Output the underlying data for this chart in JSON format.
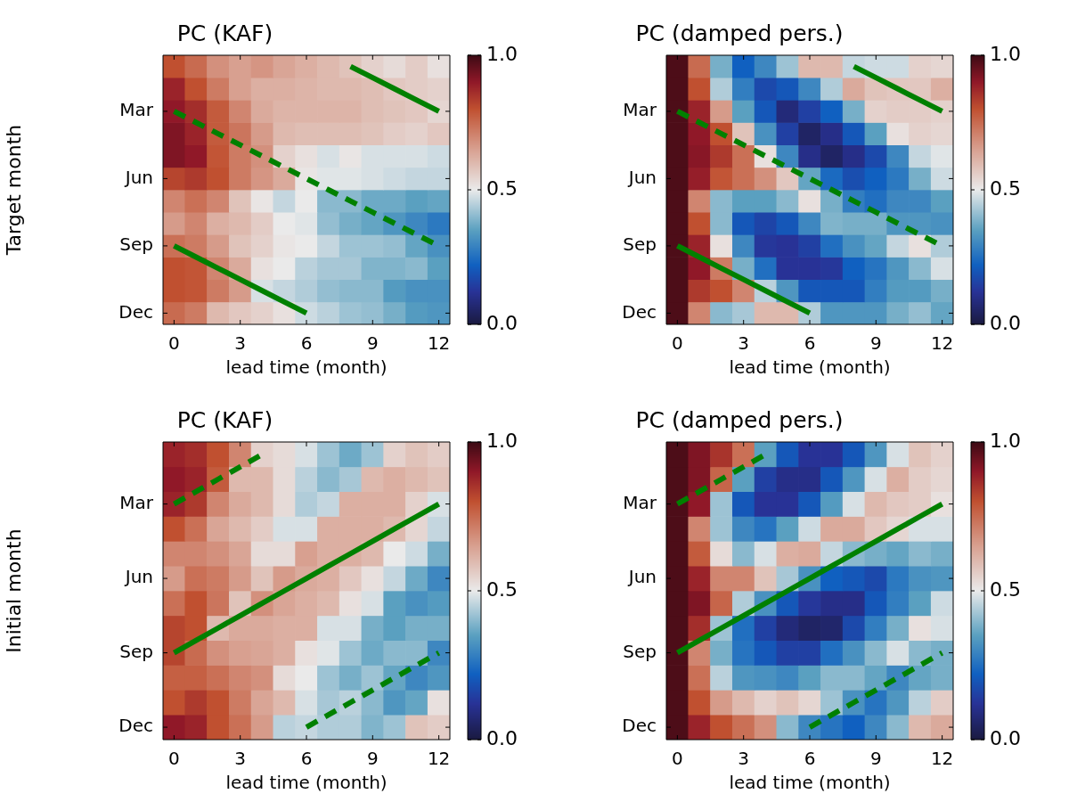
{
  "chart_data": [
    {
      "type": "heatmap",
      "title": "PC (KAF)",
      "xlabel": "lead time (month)",
      "ylabel": "Target month",
      "categories": [
        "0",
        null,
        null,
        "3",
        null,
        null,
        "6",
        null,
        null,
        "9",
        null,
        null,
        "12"
      ],
      "y_categories": [
        null,
        null,
        "Mar",
        null,
        null,
        "Jun",
        null,
        null,
        "Sep",
        null,
        null,
        "Dec"
      ],
      "clim": [
        0,
        1
      ],
      "cticks": [
        {
          "value": 0,
          "label": "0.0"
        },
        {
          "value": 0.5,
          "label": "0.5"
        },
        {
          "value": 1,
          "label": "1.0"
        }
      ],
      "cells": [
        [
          0.8,
          0.75,
          0.68,
          0.65,
          0.67,
          0.64,
          0.62,
          0.6,
          0.58,
          0.55,
          0.53,
          0.56,
          0.52
        ],
        [
          0.88,
          0.8,
          0.72,
          0.65,
          0.62,
          0.62,
          0.61,
          0.6,
          0.6,
          0.59,
          0.57,
          0.56,
          0.55
        ],
        [
          0.9,
          0.86,
          0.78,
          0.7,
          0.63,
          0.61,
          0.61,
          0.61,
          0.61,
          0.59,
          0.58,
          0.57,
          0.54
        ],
        [
          0.92,
          0.88,
          0.78,
          0.73,
          0.66,
          0.6,
          0.59,
          0.59,
          0.59,
          0.58,
          0.56,
          0.55,
          0.57
        ],
        [
          0.92,
          0.9,
          0.79,
          0.72,
          0.68,
          0.55,
          0.52,
          0.48,
          0.51,
          0.48,
          0.48,
          0.48,
          0.47
        ],
        [
          0.82,
          0.84,
          0.8,
          0.72,
          0.67,
          0.63,
          0.51,
          0.49,
          0.49,
          0.48,
          0.47,
          0.46,
          0.46
        ],
        [
          0.7,
          0.74,
          0.7,
          0.58,
          0.51,
          0.46,
          0.5,
          0.4,
          0.4,
          0.37,
          0.37,
          0.35,
          0.36
        ],
        [
          0.66,
          0.7,
          0.62,
          0.6,
          0.56,
          0.5,
          0.49,
          0.41,
          0.38,
          0.36,
          0.33,
          0.3,
          0.27
        ],
        [
          0.74,
          0.72,
          0.66,
          0.58,
          0.55,
          0.51,
          0.5,
          0.46,
          0.42,
          0.42,
          0.41,
          0.36,
          0.32
        ],
        [
          0.8,
          0.79,
          0.7,
          0.63,
          0.52,
          0.5,
          0.45,
          0.43,
          0.43,
          0.39,
          0.39,
          0.4,
          0.35
        ],
        [
          0.8,
          0.79,
          0.72,
          0.66,
          0.48,
          0.46,
          0.44,
          0.41,
          0.4,
          0.4,
          0.34,
          0.32,
          0.32
        ],
        [
          0.75,
          0.72,
          0.6,
          0.57,
          0.55,
          0.52,
          0.47,
          0.45,
          0.42,
          0.41,
          0.38,
          0.34,
          0.33
        ]
      ],
      "series": [
        {
          "type": "line",
          "color": "#008000",
          "line_style": "solid",
          "values": [
            null,
            null,
            null,
            null,
            null,
            null,
            null,
            null,
            0,
            0.5,
            1,
            1.5,
            2
          ]
        },
        {
          "type": "line",
          "color": "#008000",
          "line_style": "dashed",
          "values": [
            2,
            2.5,
            3,
            3.5,
            4,
            4.5,
            5,
            5.5,
            6,
            6.5,
            7,
            7.5,
            8
          ]
        },
        {
          "type": "line",
          "color": "#008000",
          "line_style": "solid",
          "values": [
            8,
            8.5,
            9,
            9.5,
            10,
            10.5,
            11,
            null,
            null,
            null,
            null,
            null,
            null
          ]
        }
      ]
    },
    {
      "type": "heatmap",
      "title": "PC (damped pers.)",
      "xlabel": "lead time (month)",
      "categories": [
        "0",
        null,
        null,
        "3",
        null,
        null,
        "6",
        null,
        null,
        "9",
        null,
        null,
        "12"
      ],
      "y_categories": [
        null,
        null,
        "Mar",
        null,
        null,
        "Jun",
        null,
        null,
        "Sep",
        null,
        null,
        "Dec"
      ],
      "clim": [
        0,
        1
      ],
      "cticks": [
        {
          "value": 0,
          "label": "0.0"
        },
        {
          "value": 0.5,
          "label": "0.5"
        },
        {
          "value": 1,
          "label": "1.0"
        }
      ],
      "cells": [
        [
          0.98,
          0.75,
          0.38,
          0.22,
          0.3,
          0.42,
          0.6,
          0.6,
          0.46,
          0.47,
          0.47,
          0.55,
          0.54
        ],
        [
          0.98,
          0.8,
          0.44,
          0.28,
          0.17,
          0.2,
          0.3,
          0.44,
          0.63,
          0.58,
          0.57,
          0.57,
          0.62
        ],
        [
          0.98,
          0.88,
          0.66,
          0.35,
          0.2,
          0.08,
          0.15,
          0.22,
          0.38,
          0.55,
          0.56,
          0.56,
          0.55
        ],
        [
          0.98,
          0.9,
          0.8,
          0.58,
          0.32,
          0.15,
          0.05,
          0.1,
          0.2,
          0.35,
          0.52,
          0.55,
          0.54
        ],
        [
          0.98,
          0.91,
          0.84,
          0.74,
          0.52,
          0.3,
          0.1,
          0.05,
          0.1,
          0.17,
          0.3,
          0.46,
          0.49
        ],
        [
          0.98,
          0.89,
          0.79,
          0.74,
          0.68,
          0.57,
          0.36,
          0.24,
          0.18,
          0.22,
          0.27,
          0.38,
          0.47
        ],
        [
          0.98,
          0.7,
          0.4,
          0.35,
          0.35,
          0.4,
          0.52,
          0.38,
          0.28,
          0.25,
          0.3,
          0.3,
          0.35
        ],
        [
          0.98,
          0.8,
          0.4,
          0.2,
          0.16,
          0.2,
          0.3,
          0.39,
          0.38,
          0.38,
          0.33,
          0.33,
          0.32
        ],
        [
          0.98,
          0.88,
          0.52,
          0.3,
          0.13,
          0.12,
          0.15,
          0.25,
          0.32,
          0.36,
          0.46,
          0.52,
          0.44
        ],
        [
          0.98,
          0.9,
          0.72,
          0.38,
          0.25,
          0.12,
          0.12,
          0.13,
          0.22,
          0.26,
          0.33,
          0.4,
          0.48
        ],
        [
          0.98,
          0.84,
          0.8,
          0.7,
          0.45,
          0.33,
          0.2,
          0.2,
          0.2,
          0.28,
          0.34,
          0.34,
          0.38
        ],
        [
          0.98,
          0.7,
          0.4,
          0.43,
          0.6,
          0.6,
          0.44,
          0.33,
          0.33,
          0.33,
          0.38,
          0.41,
          0.36
        ]
      ],
      "series": [
        {
          "type": "line",
          "color": "#008000",
          "line_style": "solid",
          "values": [
            null,
            null,
            null,
            null,
            null,
            null,
            null,
            null,
            0,
            0.5,
            1,
            1.5,
            2
          ]
        },
        {
          "type": "line",
          "color": "#008000",
          "line_style": "dashed",
          "values": [
            2,
            2.5,
            3,
            3.5,
            4,
            4.5,
            5,
            5.5,
            6,
            6.5,
            7,
            7.5,
            8
          ]
        },
        {
          "type": "line",
          "color": "#008000",
          "line_style": "solid",
          "values": [
            8,
            8.5,
            9,
            9.5,
            10,
            10.5,
            11,
            null,
            null,
            null,
            null,
            null,
            null
          ]
        }
      ]
    },
    {
      "type": "heatmap",
      "title": "PC (KAF)",
      "xlabel": "lead time (month)",
      "ylabel": "Initial month",
      "categories": [
        "0",
        null,
        null,
        "3",
        null,
        null,
        "6",
        null,
        null,
        "9",
        null,
        null,
        "12"
      ],
      "y_categories": [
        null,
        null,
        "Mar",
        null,
        null,
        "Jun",
        null,
        null,
        "Sep",
        null,
        null,
        "Dec"
      ],
      "clim": [
        0,
        1
      ],
      "cticks": [
        {
          "value": 0,
          "label": "0.0"
        },
        {
          "value": 0.5,
          "label": "0.5"
        },
        {
          "value": 1,
          "label": "1.0"
        }
      ],
      "cells": [
        [
          0.88,
          0.86,
          0.8,
          0.7,
          0.55,
          0.53,
          0.48,
          0.42,
          0.37,
          0.42,
          0.55,
          0.58,
          0.56
        ],
        [
          0.9,
          0.88,
          0.78,
          0.6,
          0.6,
          0.53,
          0.45,
          0.4,
          0.43,
          0.6,
          0.62,
          0.6,
          0.58
        ],
        [
          0.88,
          0.84,
          0.7,
          0.63,
          0.6,
          0.53,
          0.44,
          0.46,
          0.62,
          0.62,
          0.62,
          0.55,
          0.48
        ],
        [
          0.8,
          0.74,
          0.64,
          0.6,
          0.56,
          0.48,
          0.48,
          0.62,
          0.62,
          0.62,
          0.6,
          0.54,
          0.46
        ],
        [
          0.7,
          0.7,
          0.68,
          0.64,
          0.53,
          0.53,
          0.65,
          0.62,
          0.62,
          0.6,
          0.5,
          0.47,
          0.38
        ],
        [
          0.66,
          0.74,
          0.72,
          0.66,
          0.58,
          0.66,
          0.63,
          0.62,
          0.57,
          0.52,
          0.46,
          0.37,
          0.3
        ],
        [
          0.74,
          0.8,
          0.73,
          0.58,
          0.68,
          0.64,
          0.62,
          0.6,
          0.52,
          0.48,
          0.35,
          0.32,
          0.34
        ],
        [
          0.82,
          0.8,
          0.6,
          0.63,
          0.63,
          0.62,
          0.62,
          0.48,
          0.48,
          0.38,
          0.35,
          0.38,
          0.38
        ],
        [
          0.82,
          0.75,
          0.68,
          0.65,
          0.64,
          0.62,
          0.52,
          0.49,
          0.42,
          0.37,
          0.4,
          0.4,
          0.3
        ],
        [
          0.77,
          0.77,
          0.74,
          0.7,
          0.68,
          0.53,
          0.5,
          0.42,
          0.38,
          0.42,
          0.36,
          0.3,
          0.33
        ],
        [
          0.8,
          0.84,
          0.8,
          0.72,
          0.64,
          0.6,
          0.48,
          0.43,
          0.45,
          0.4,
          0.33,
          0.36,
          0.52
        ],
        [
          0.9,
          0.88,
          0.8,
          0.74,
          0.66,
          0.45,
          0.46,
          0.44,
          0.44,
          0.39,
          0.42,
          0.58,
          0.56
        ]
      ],
      "series": [
        {
          "type": "line",
          "color": "#008000",
          "line_style": "dashed",
          "values": [
            2,
            1.5,
            1,
            0.5,
            0,
            null,
            null,
            null,
            null,
            null,
            null,
            null,
            null
          ]
        },
        {
          "type": "line",
          "color": "#008000",
          "line_style": "solid",
          "values": [
            8,
            7.5,
            7,
            6.5,
            6,
            5.5,
            5,
            4.5,
            4,
            3.5,
            3,
            2.5,
            2
          ]
        },
        {
          "type": "line",
          "color": "#008000",
          "line_style": "dashed",
          "values": [
            null,
            null,
            null,
            null,
            null,
            null,
            11,
            10.5,
            10,
            9.5,
            9,
            8.5,
            8
          ]
        }
      ]
    },
    {
      "type": "heatmap",
      "title": "PC (damped pers.)",
      "xlabel": "lead time (month)",
      "categories": [
        "0",
        null,
        null,
        "3",
        null,
        null,
        "6",
        null,
        null,
        "9",
        null,
        null,
        "12"
      ],
      "y_categories": [
        null,
        null,
        "Mar",
        null,
        null,
        "Jun",
        null,
        null,
        "Sep",
        null,
        null,
        "Dec"
      ],
      "clim": [
        0,
        1
      ],
      "cticks": [
        {
          "value": 0,
          "label": "0.0"
        },
        {
          "value": 0.5,
          "label": "0.5"
        },
        {
          "value": 1,
          "label": "1.0"
        }
      ],
      "cells": [
        [
          0.98,
          0.92,
          0.85,
          0.74,
          0.35,
          0.2,
          0.12,
          0.12,
          0.2,
          0.33,
          0.48,
          0.58,
          0.55
        ],
        [
          0.98,
          0.92,
          0.76,
          0.35,
          0.15,
          0.1,
          0.1,
          0.2,
          0.33,
          0.48,
          0.62,
          0.56,
          0.54
        ],
        [
          0.98,
          0.9,
          0.42,
          0.2,
          0.12,
          0.12,
          0.2,
          0.34,
          0.48,
          0.6,
          0.57,
          0.56,
          0.52
        ],
        [
          0.98,
          0.7,
          0.42,
          0.3,
          0.26,
          0.35,
          0.47,
          0.63,
          0.63,
          0.57,
          0.54,
          0.48,
          0.48
        ],
        [
          0.98,
          0.78,
          0.53,
          0.4,
          0.48,
          0.62,
          0.63,
          0.46,
          0.4,
          0.38,
          0.36,
          0.4,
          0.38
        ],
        [
          0.98,
          0.88,
          0.7,
          0.7,
          0.58,
          0.43,
          0.32,
          0.22,
          0.2,
          0.17,
          0.27,
          0.32,
          0.33
        ],
        [
          0.98,
          0.92,
          0.76,
          0.44,
          0.32,
          0.2,
          0.13,
          0.1,
          0.1,
          0.2,
          0.28,
          0.35,
          0.47
        ],
        [
          0.98,
          0.86,
          0.42,
          0.25,
          0.15,
          0.08,
          0.05,
          0.06,
          0.17,
          0.28,
          0.38,
          0.52,
          0.48
        ],
        [
          0.98,
          0.7,
          0.38,
          0.26,
          0.2,
          0.15,
          0.15,
          0.25,
          0.32,
          0.4,
          0.48,
          0.4,
          0.38
        ],
        [
          0.98,
          0.74,
          0.45,
          0.33,
          0.32,
          0.3,
          0.35,
          0.4,
          0.4,
          0.36,
          0.3,
          0.36,
          0.38
        ],
        [
          0.98,
          0.8,
          0.66,
          0.6,
          0.55,
          0.58,
          0.54,
          0.42,
          0.32,
          0.26,
          0.33,
          0.45,
          0.56
        ],
        [
          0.98,
          0.88,
          0.8,
          0.74,
          0.68,
          0.4,
          0.3,
          0.26,
          0.22,
          0.3,
          0.4,
          0.6,
          0.63
        ]
      ],
      "series": [
        {
          "type": "line",
          "color": "#008000",
          "line_style": "dashed",
          "values": [
            2,
            1.5,
            1,
            0.5,
            0,
            null,
            null,
            null,
            null,
            null,
            null,
            null,
            null
          ]
        },
        {
          "type": "line",
          "color": "#008000",
          "line_style": "solid",
          "values": [
            8,
            7.5,
            7,
            6.5,
            6,
            5.5,
            5,
            4.5,
            4,
            3.5,
            3,
            2.5,
            2
          ]
        },
        {
          "type": "line",
          "color": "#008000",
          "line_style": "dashed",
          "values": [
            null,
            null,
            null,
            null,
            null,
            null,
            11,
            10.5,
            10,
            9.5,
            9,
            8.5,
            8
          ]
        }
      ]
    }
  ]
}
